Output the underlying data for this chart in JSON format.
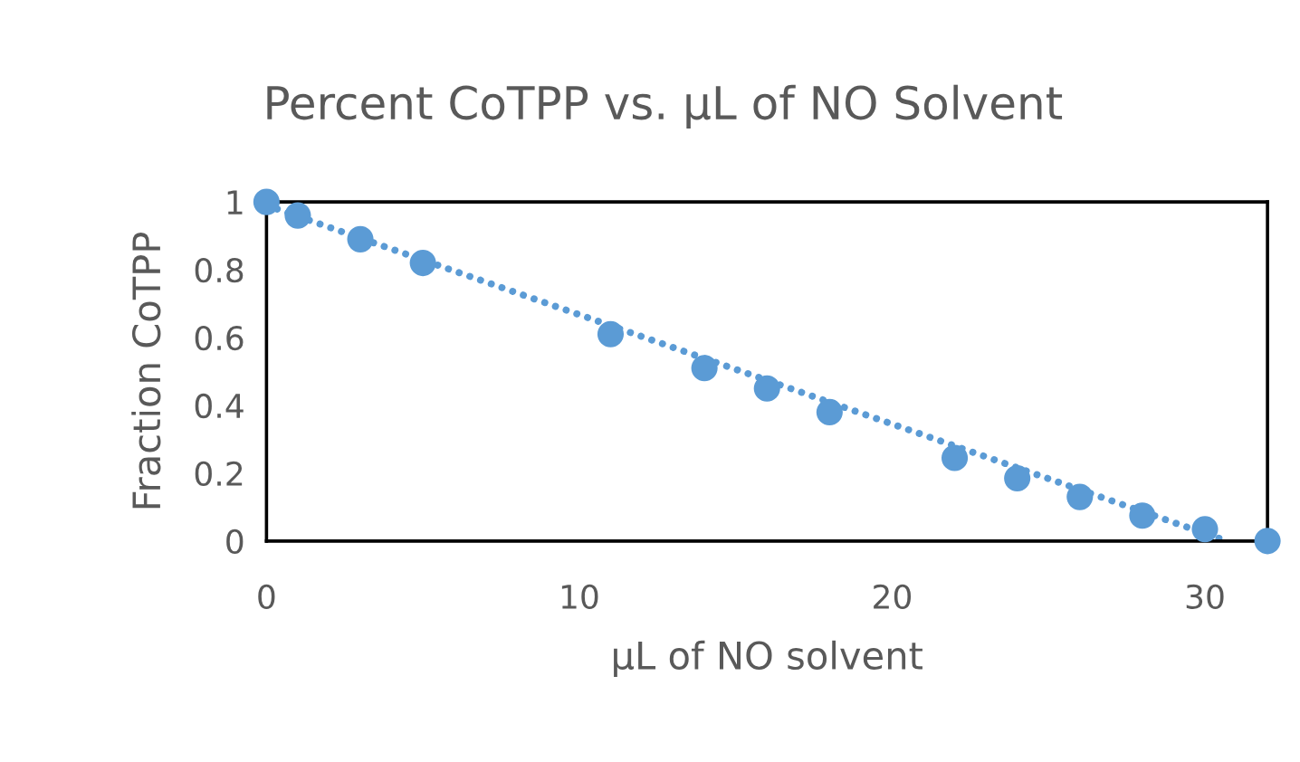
{
  "chart_data": {
    "type": "scatter",
    "title": "Percent CoTPP vs. µL of NO Solvent",
    "xlabel": "µL of NO solvent",
    "ylabel": "Fraction CoTPP",
    "x": [
      0,
      1,
      3,
      5,
      11,
      14,
      16,
      18,
      22,
      24,
      26,
      28,
      30,
      32
    ],
    "series": [
      {
        "type": "line",
        "color": "#5b9bd5",
        "x": [
          0,
          30.7
        ],
        "values": [
          0.99,
          0.0
        ],
        "line_style": "dotted",
        "marker": "none"
      },
      {
        "color": "#5b9bd5",
        "marker": "circle",
        "values": [
          1,
          0.96,
          0.89,
          0.82,
          0.61,
          0.51,
          0.45,
          0.38,
          0.245,
          0.185,
          0.13,
          0.075,
          0.035,
          0
        ]
      }
    ],
    "xlim": [
      0,
      32
    ],
    "xticks": [
      0,
      10,
      20,
      30
    ],
    "ylim": [
      0,
      1
    ],
    "yticks": [
      0,
      0.2,
      0.4,
      0.6,
      0.8,
      1
    ],
    "grid": false,
    "legend": false
  }
}
